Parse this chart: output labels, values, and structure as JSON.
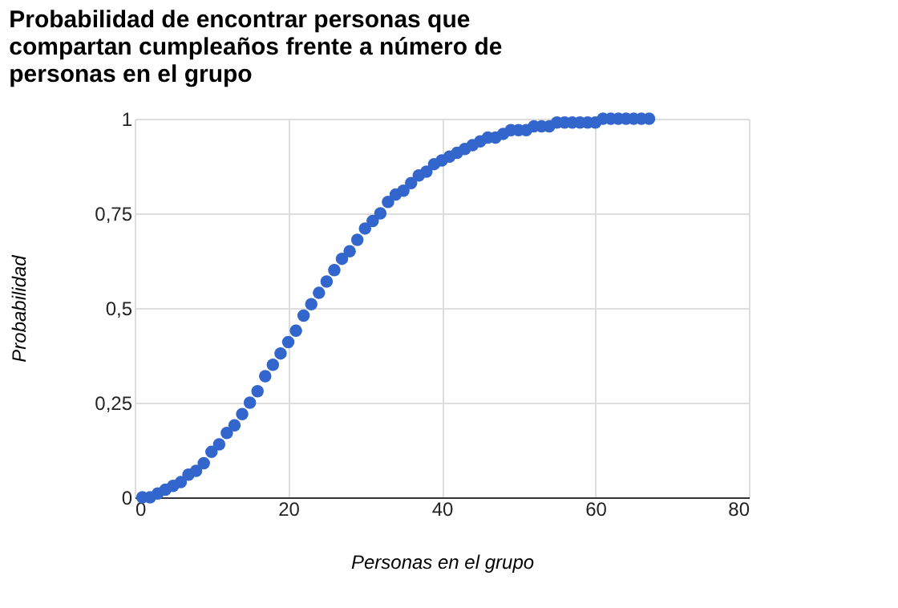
{
  "chart_data": {
    "type": "scatter",
    "title": "Probabilidad de encontrar personas que compartan cumpleaños frente a número de personas en el grupo",
    "xlabel": "Personas en el grupo",
    "ylabel": "Probabilidad",
    "x": [
      1,
      2,
      3,
      4,
      5,
      6,
      7,
      8,
      9,
      10,
      11,
      12,
      13,
      14,
      15,
      16,
      17,
      18,
      19,
      20,
      21,
      22,
      23,
      24,
      25,
      26,
      27,
      28,
      29,
      30,
      31,
      32,
      33,
      34,
      35,
      36,
      37,
      38,
      39,
      40,
      41,
      42,
      43,
      44,
      45,
      46,
      47,
      48,
      49,
      50,
      51,
      52,
      53,
      54,
      55,
      56,
      57,
      58,
      59,
      60,
      61,
      62,
      63,
      64,
      65,
      66,
      67
    ],
    "series": [
      {
        "color": "#3366cc",
        "values": [
          0,
          0.0,
          0.01,
          0.02,
          0.03,
          0.04,
          0.06,
          0.07,
          0.09,
          0.12,
          0.14,
          0.17,
          0.19,
          0.22,
          0.25,
          0.28,
          0.32,
          0.35,
          0.38,
          0.41,
          0.44,
          0.48,
          0.51,
          0.54,
          0.57,
          0.6,
          0.63,
          0.65,
          0.68,
          0.71,
          0.73,
          0.75,
          0.78,
          0.8,
          0.81,
          0.83,
          0.85,
          0.86,
          0.88,
          0.89,
          0.9,
          0.91,
          0.92,
          0.93,
          0.94,
          0.95,
          0.95,
          0.96,
          0.97,
          0.97,
          0.97,
          0.98,
          0.98,
          0.98,
          0.99,
          0.99,
          0.99,
          0.99,
          0.99,
          0.99,
          1.0,
          1.0,
          1.0,
          1.0,
          1.0,
          1.0,
          1.0
        ]
      }
    ],
    "xlim": [
      0,
      80
    ],
    "xticks": [
      0,
      20,
      40,
      60,
      80
    ],
    "ylim": [
      0,
      1
    ],
    "yticks": [
      0,
      {
        "value": 0.25,
        "label": "0,25"
      },
      {
        "value": 0.5,
        "label": "0,5"
      },
      {
        "value": 0.75,
        "label": "0,75"
      },
      1
    ],
    "grid": true,
    "marker": "circle",
    "legend": false
  }
}
